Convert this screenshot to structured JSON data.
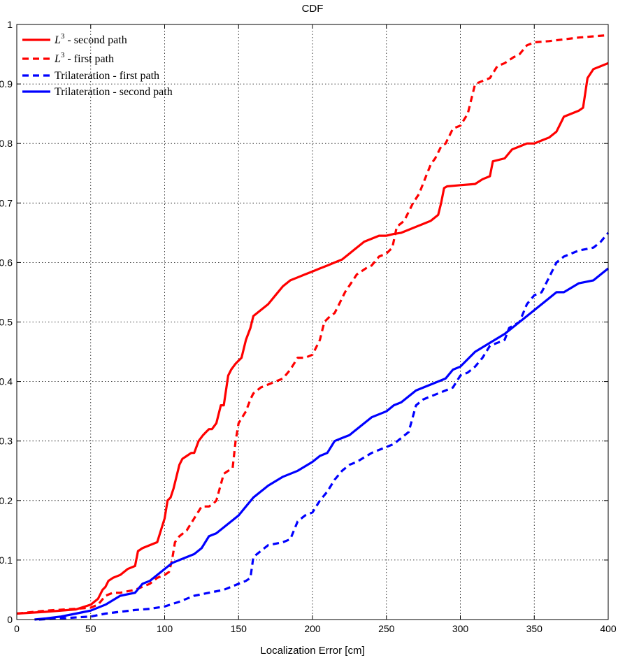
{
  "chart_data": {
    "type": "line",
    "title": "CDF",
    "xlabel": "Localization Error [cm]",
    "ylabel": "",
    "xlim": [
      0,
      400
    ],
    "ylim": [
      0,
      1
    ],
    "xticks": [
      0,
      50,
      100,
      150,
      200,
      250,
      300,
      350,
      400
    ],
    "yticks": [
      0,
      0.1,
      0.2,
      0.3,
      0.4,
      0.5,
      0.6,
      0.7,
      0.8,
      0.9,
      1
    ],
    "grid": true,
    "legend_position": "top-left",
    "series": [
      {
        "name": "L^3 - second path",
        "legend_main": "L",
        "legend_sup": "3",
        "legend_rest": " - second path",
        "color": "#ff0000",
        "style": "solid",
        "x": [
          0,
          20,
          40,
          50,
          55,
          58,
          60,
          62,
          65,
          70,
          75,
          80,
          82,
          85,
          90,
          95,
          100,
          102,
          104,
          106,
          108,
          110,
          112,
          115,
          118,
          120,
          123,
          126,
          128,
          130,
          132,
          135,
          138,
          140,
          143,
          145,
          148,
          150,
          152,
          155,
          158,
          160,
          165,
          170,
          175,
          180,
          185,
          190,
          195,
          200,
          205,
          210,
          215,
          220,
          225,
          230,
          235,
          240,
          245,
          250,
          255,
          260,
          265,
          270,
          275,
          280,
          285,
          287,
          289,
          291,
          300,
          310,
          315,
          320,
          322,
          330,
          335,
          340,
          345,
          350,
          355,
          360,
          365,
          370,
          375,
          380,
          383,
          386,
          390,
          395,
          400
        ],
        "values": [
          0.01,
          0.013,
          0.017,
          0.025,
          0.035,
          0.05,
          0.055,
          0.065,
          0.07,
          0.075,
          0.085,
          0.09,
          0.115,
          0.12,
          0.125,
          0.13,
          0.17,
          0.2,
          0.205,
          0.22,
          0.24,
          0.26,
          0.27,
          0.275,
          0.28,
          0.28,
          0.3,
          0.31,
          0.315,
          0.32,
          0.32,
          0.33,
          0.36,
          0.36,
          0.41,
          0.42,
          0.43,
          0.435,
          0.44,
          0.47,
          0.49,
          0.51,
          0.52,
          0.53,
          0.545,
          0.56,
          0.57,
          0.575,
          0.58,
          0.585,
          0.59,
          0.595,
          0.6,
          0.605,
          0.615,
          0.625,
          0.635,
          0.64,
          0.645,
          0.645,
          0.648,
          0.65,
          0.655,
          0.66,
          0.665,
          0.67,
          0.68,
          0.7,
          0.725,
          0.728,
          0.73,
          0.732,
          0.74,
          0.745,
          0.77,
          0.775,
          0.79,
          0.795,
          0.8,
          0.8,
          0.805,
          0.81,
          0.82,
          0.845,
          0.85,
          0.855,
          0.86,
          0.91,
          0.925,
          0.93,
          0.935
        ]
      },
      {
        "name": "L^3 - first path",
        "legend_main": "L",
        "legend_sup": "3",
        "legend_rest": " - first path",
        "color": "#ff0000",
        "style": "dashed",
        "x": [
          0,
          20,
          40,
          50,
          55,
          60,
          65,
          70,
          80,
          90,
          95,
          100,
          103,
          105,
          107,
          110,
          115,
          120,
          125,
          130,
          133,
          135,
          140,
          143,
          146,
          148,
          150,
          155,
          158,
          160,
          165,
          170,
          180,
          185,
          190,
          195,
          200,
          205,
          208,
          212,
          215,
          218,
          222,
          226,
          230,
          236,
          240,
          245,
          250,
          254,
          257,
          262,
          265,
          268,
          272,
          276,
          280,
          283,
          287,
          290,
          295,
          300,
          305,
          310,
          315,
          320,
          325,
          330,
          336,
          340,
          345,
          350,
          360,
          370,
          380,
          390,
          400
        ],
        "values": [
          0.01,
          0.015,
          0.018,
          0.02,
          0.025,
          0.04,
          0.045,
          0.045,
          0.05,
          0.06,
          0.07,
          0.075,
          0.08,
          0.1,
          0.13,
          0.14,
          0.15,
          0.17,
          0.19,
          0.19,
          0.195,
          0.2,
          0.245,
          0.25,
          0.255,
          0.3,
          0.33,
          0.35,
          0.37,
          0.38,
          0.39,
          0.395,
          0.405,
          0.42,
          0.44,
          0.44,
          0.445,
          0.47,
          0.5,
          0.51,
          0.515,
          0.53,
          0.55,
          0.565,
          0.58,
          0.59,
          0.595,
          0.61,
          0.615,
          0.625,
          0.66,
          0.67,
          0.685,
          0.7,
          0.715,
          0.74,
          0.765,
          0.775,
          0.795,
          0.8,
          0.825,
          0.83,
          0.85,
          0.9,
          0.905,
          0.91,
          0.93,
          0.935,
          0.945,
          0.95,
          0.965,
          0.97,
          0.972,
          0.975,
          0.978,
          0.98,
          0.982
        ]
      },
      {
        "name": "Trilateration - first path",
        "legend_main": "Trilateration - first path",
        "legend_sup": "",
        "legend_rest": "",
        "color": "#0000ff",
        "style": "dashed",
        "x": [
          15,
          30,
          50,
          60,
          70,
          80,
          90,
          100,
          110,
          115,
          120,
          130,
          140,
          150,
          155,
          158,
          160,
          165,
          170,
          180,
          185,
          190,
          195,
          200,
          205,
          210,
          215,
          220,
          225,
          230,
          240,
          250,
          255,
          260,
          265,
          270,
          275,
          280,
          285,
          290,
          295,
          300,
          305,
          310,
          315,
          320,
          325,
          330,
          333,
          340,
          345,
          350,
          355,
          360,
          365,
          370,
          380,
          390,
          395,
          400
        ],
        "values": [
          0.0,
          0.002,
          0.005,
          0.01,
          0.013,
          0.016,
          0.018,
          0.022,
          0.03,
          0.035,
          0.04,
          0.045,
          0.05,
          0.06,
          0.065,
          0.07,
          0.105,
          0.115,
          0.125,
          0.13,
          0.135,
          0.165,
          0.175,
          0.18,
          0.2,
          0.215,
          0.235,
          0.25,
          0.26,
          0.265,
          0.28,
          0.29,
          0.295,
          0.305,
          0.315,
          0.36,
          0.37,
          0.375,
          0.38,
          0.385,
          0.39,
          0.41,
          0.415,
          0.425,
          0.44,
          0.46,
          0.465,
          0.47,
          0.49,
          0.5,
          0.53,
          0.545,
          0.55,
          0.575,
          0.6,
          0.61,
          0.62,
          0.625,
          0.635,
          0.65
        ]
      },
      {
        "name": "Trilateration - second path",
        "legend_main": "Trilateration - second path",
        "legend_sup": "",
        "legend_rest": "",
        "color": "#0000ff",
        "style": "solid",
        "x": [
          12,
          20,
          30,
          40,
          50,
          60,
          70,
          80,
          85,
          90,
          100,
          105,
          110,
          115,
          120,
          125,
          130,
          135,
          140,
          145,
          150,
          155,
          160,
          165,
          170,
          180,
          190,
          200,
          205,
          210,
          215,
          220,
          225,
          230,
          240,
          250,
          255,
          260,
          265,
          270,
          280,
          290,
          295,
          300,
          310,
          320,
          330,
          340,
          350,
          360,
          365,
          370,
          380,
          390,
          395,
          400
        ],
        "values": [
          0.0,
          0.002,
          0.005,
          0.01,
          0.015,
          0.025,
          0.04,
          0.045,
          0.06,
          0.065,
          0.085,
          0.095,
          0.1,
          0.105,
          0.11,
          0.12,
          0.14,
          0.145,
          0.155,
          0.165,
          0.175,
          0.19,
          0.205,
          0.215,
          0.225,
          0.24,
          0.25,
          0.265,
          0.275,
          0.28,
          0.3,
          0.305,
          0.31,
          0.32,
          0.34,
          0.35,
          0.36,
          0.365,
          0.375,
          0.385,
          0.395,
          0.405,
          0.42,
          0.425,
          0.45,
          0.465,
          0.48,
          0.5,
          0.52,
          0.54,
          0.55,
          0.55,
          0.565,
          0.57,
          0.58,
          0.59
        ]
      }
    ]
  }
}
